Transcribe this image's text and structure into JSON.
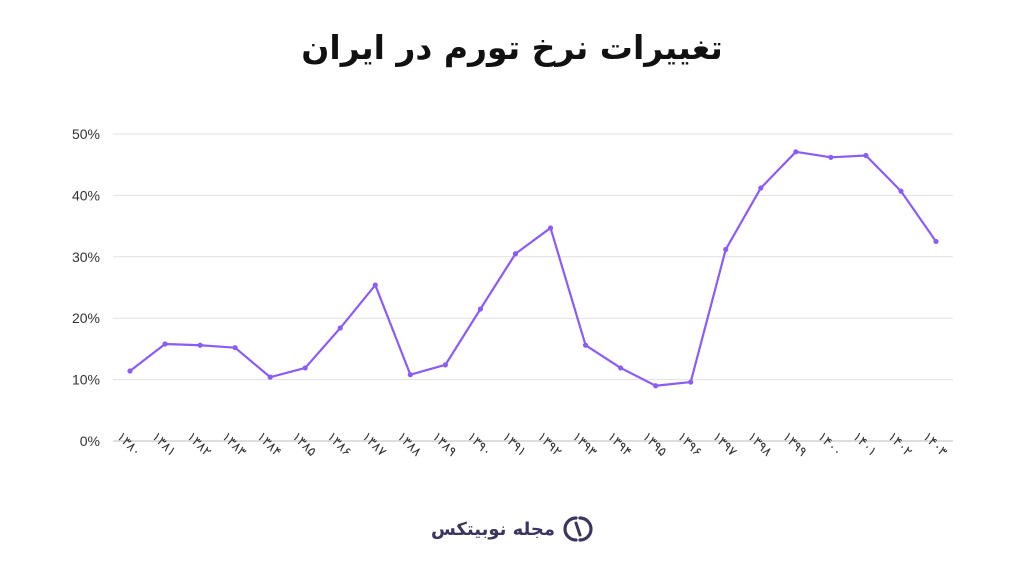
{
  "colors": {
    "line": "#8b5cf6",
    "grid": "#e0e0e0",
    "axis": "#bdbdbd",
    "brand": "#3b3560"
  },
  "chart_data": {
    "type": "line",
    "title": "تغییرات نرخ تورم در ایران",
    "xlabel": "",
    "ylabel": "",
    "categories": [
      "۱۳۸۰",
      "۱۳۸۱",
      "۱۳۸۲",
      "۱۳۸۳",
      "۱۳۸۴",
      "۱۳۸۵",
      "۱۳۸۶",
      "۱۳۸۷",
      "۱۳۸۸",
      "۱۳۸۹",
      "۱۳۹۰",
      "۱۳۹۱",
      "۱۳۹۲",
      "۱۳۹۳",
      "۱۳۹۴",
      "۱۳۹۵",
      "۱۳۹۶",
      "۱۳۹۷",
      "۱۳۹۸",
      "۱۳۹۹",
      "۱۴۰۰",
      "۱۴۰۱",
      "۱۴۰۲",
      "۱۴۰۳"
    ],
    "series": [
      {
        "values": [
          11.4,
          15.8,
          15.6,
          15.2,
          10.4,
          11.9,
          18.4,
          25.4,
          10.8,
          12.4,
          21.5,
          30.5,
          34.7,
          15.6,
          11.9,
          9.0,
          9.6,
          31.2,
          41.2,
          47.1,
          46.2,
          46.5,
          40.7,
          32.5
        ]
      }
    ],
    "ylim": [
      0,
      50
    ],
    "yticks": [
      "0%",
      "10%",
      "20%",
      "30%",
      "40%",
      "50%"
    ],
    "grid": true,
    "legend": "none"
  },
  "brand": {
    "name": "مجله نوبیتکس",
    "logo_icon": "nobitex-logo-icon"
  }
}
